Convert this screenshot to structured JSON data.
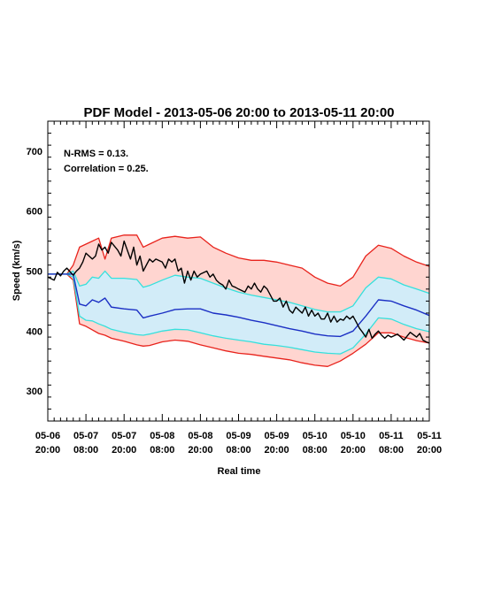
{
  "chart_data": {
    "type": "line",
    "title": "PDF Model - 2013-05-06 20:00 to 2013-05-11 20:00",
    "xlabel": "Real time",
    "ylabel": "Speed (km/s)",
    "annotations": [
      "N-RMS = 0.13.",
      "Correlation = 0.25."
    ],
    "xlim": [
      0,
      120
    ],
    "ylim": [
      250,
      750
    ],
    "y_ticks": [
      300,
      400,
      500,
      600,
      700
    ],
    "x_ticks": [
      {
        "x": 0,
        "date": "05-06",
        "time": "20:00"
      },
      {
        "x": 12,
        "date": "05-07",
        "time": "08:00"
      },
      {
        "x": 24,
        "date": "05-07",
        "time": "20:00"
      },
      {
        "x": 36,
        "date": "05-08",
        "time": "08:00"
      },
      {
        "x": 48,
        "date": "05-08",
        "time": "20:00"
      },
      {
        "x": 60,
        "date": "05-09",
        "time": "08:00"
      },
      {
        "x": 72,
        "date": "05-09",
        "time": "20:00"
      },
      {
        "x": 84,
        "date": "05-10",
        "time": "08:00"
      },
      {
        "x": 96,
        "date": "05-10",
        "time": "20:00"
      },
      {
        "x": 108,
        "date": "05-11",
        "time": "08:00"
      },
      {
        "x": 120,
        "date": "05-11",
        "time": "20:00"
      }
    ],
    "colors": {
      "outer_fill": "#ffd5d0",
      "inner_fill": "#d2ecf8",
      "outer_line": "#e8231c",
      "inner_line": "#35e0dc",
      "median_line": "#1b2fc4",
      "observed_line": "#000000"
    },
    "x": [
      0,
      6,
      8,
      10,
      12,
      14,
      16,
      18,
      20,
      24,
      28,
      30,
      32,
      36,
      40,
      44,
      48,
      52,
      56,
      60,
      64,
      68,
      72,
      76,
      80,
      84,
      88,
      92,
      96,
      100,
      104,
      108,
      112,
      116,
      120
    ],
    "series": [
      {
        "role": "outer_upper",
        "values": [
          495,
          495,
          510,
          540,
          545,
          550,
          555,
          520,
          555,
          560,
          560,
          540,
          545,
          555,
          558,
          555,
          557,
          540,
          530,
          522,
          518,
          518,
          515,
          510,
          505,
          490,
          480,
          475,
          490,
          525,
          543,
          538,
          525,
          515,
          508
        ]
      },
      {
        "role": "inner_upper",
        "values": [
          495,
          495,
          500,
          475,
          478,
          490,
          488,
          500,
          488,
          488,
          486,
          473,
          476,
          485,
          493,
          490,
          488,
          480,
          472,
          465,
          460,
          456,
          452,
          448,
          442,
          436,
          432,
          432,
          442,
          472,
          490,
          487,
          477,
          470,
          463
        ]
      },
      {
        "role": "median",
        "values": [
          495,
          495,
          495,
          445,
          442,
          452,
          448,
          455,
          440,
          437,
          435,
          422,
          425,
          430,
          436,
          437,
          437,
          430,
          427,
          423,
          418,
          414,
          409,
          404,
          400,
          395,
          392,
          391,
          400,
          425,
          452,
          450,
          442,
          435,
          426
        ]
      },
      {
        "role": "inner_lower",
        "values": [
          495,
          495,
          490,
          425,
          418,
          417,
          412,
          408,
          403,
          398,
          394,
          393,
          395,
          400,
          403,
          402,
          397,
          392,
          388,
          385,
          382,
          378,
          376,
          373,
          369,
          365,
          363,
          362,
          372,
          395,
          422,
          420,
          411,
          404,
          399
        ]
      },
      {
        "role": "outer_lower",
        "values": [
          495,
          495,
          485,
          412,
          408,
          402,
          396,
          393,
          388,
          383,
          377,
          375,
          376,
          382,
          385,
          383,
          377,
          372,
          367,
          363,
          361,
          358,
          355,
          352,
          347,
          343,
          341,
          350,
          363,
          378,
          397,
          397,
          390,
          384,
          380
        ]
      },
      {
        "role": "observed",
        "x": [
          0,
          2,
          3,
          4,
          5,
          6,
          8,
          9,
          10,
          11,
          12,
          14,
          15,
          16,
          17,
          18,
          19,
          20,
          22,
          23,
          24,
          26,
          27,
          28,
          29,
          30,
          32,
          33,
          34,
          36,
          37,
          38,
          39,
          40,
          41,
          42,
          43,
          44,
          45,
          46,
          47,
          48,
          50,
          51,
          52,
          53,
          54,
          55,
          56,
          57,
          58,
          59,
          60,
          62,
          63,
          64,
          65,
          66,
          67,
          68,
          69,
          70,
          71,
          72,
          73,
          74,
          75,
          76,
          77,
          78,
          79,
          80,
          81,
          82,
          83,
          84,
          85,
          86,
          87,
          88,
          89,
          90,
          91,
          92,
          93,
          94,
          95,
          96,
          97,
          98,
          99,
          100,
          101,
          102,
          103,
          104,
          105,
          106,
          107,
          108,
          110,
          112,
          114,
          116,
          117,
          118,
          119,
          120
        ],
        "values": [
          490,
          485,
          498,
          492,
          500,
          505,
          493,
          500,
          505,
          515,
          530,
          520,
          525,
          545,
          535,
          540,
          530,
          548,
          535,
          525,
          550,
          520,
          540,
          510,
          525,
          500,
          520,
          515,
          520,
          515,
          505,
          520,
          515,
          520,
          500,
          505,
          480,
          500,
          485,
          500,
          490,
          495,
          500,
          490,
          495,
          485,
          480,
          477,
          470,
          485,
          475,
          473,
          470,
          465,
          475,
          470,
          480,
          470,
          465,
          475,
          470,
          460,
          450,
          450,
          455,
          440,
          450,
          435,
          430,
          440,
          435,
          430,
          440,
          425,
          435,
          425,
          430,
          420,
          420,
          430,
          415,
          425,
          415,
          420,
          418,
          425,
          420,
          425,
          415,
          405,
          398,
          390,
          403,
          388,
          395,
          400,
          393,
          388,
          393,
          390,
          395,
          385,
          398,
          390,
          396,
          385,
          382,
          380
        ]
      }
    ]
  }
}
